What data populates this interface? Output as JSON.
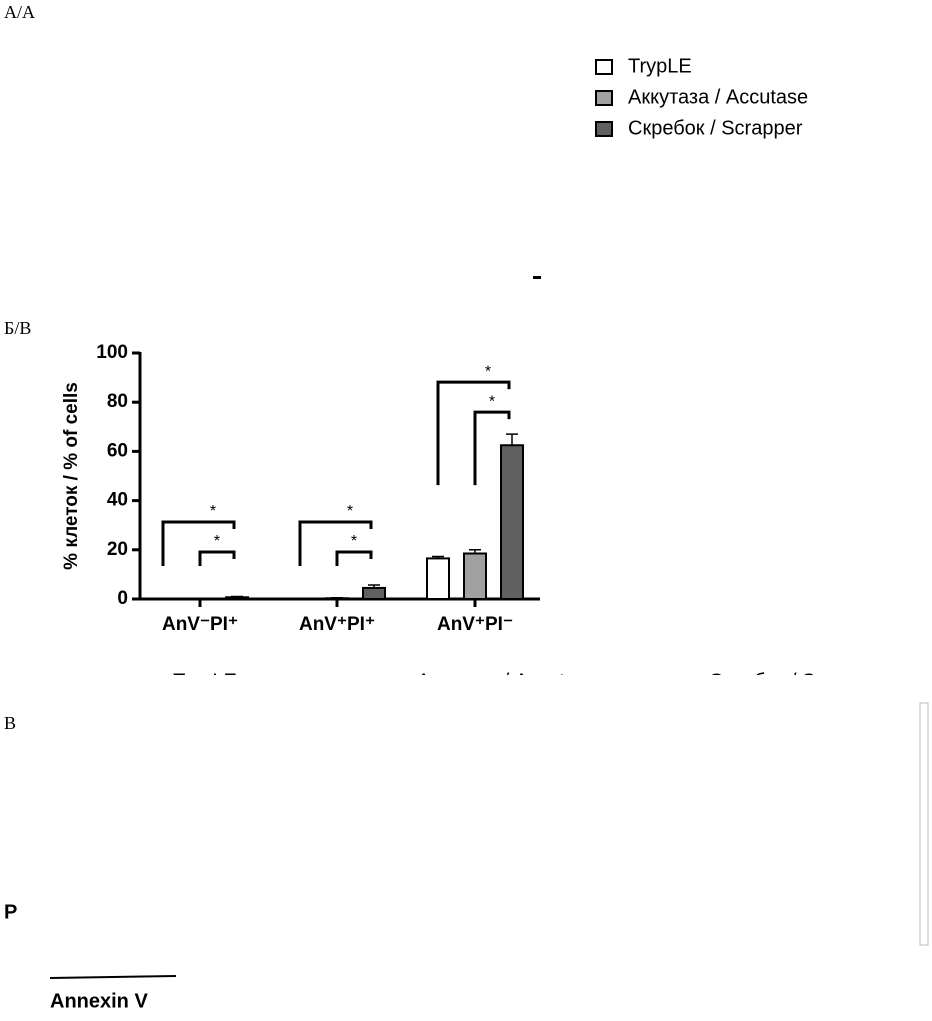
{
  "panels": {
    "a": "А/A",
    "b": "Б/B",
    "c": "В",
    "d": "Р",
    "axis_note": "Annexin V"
  },
  "chart_data": {
    "type": "bar",
    "y_label": "% клеток / % of cells",
    "categories": [
      "AnV⁻PI⁺",
      "AnV⁺PI⁺",
      "AnV⁺PI⁻"
    ],
    "series": [
      {
        "name": "TrypLE",
        "color": "#ffffff",
        "values": [
          0,
          0,
          16.5
        ],
        "errors": [
          0,
          0,
          0.8
        ]
      },
      {
        "name": "Аккутаза / Accutase",
        "color": "#a0a0a0",
        "values": [
          0,
          0.3,
          18.5
        ],
        "errors": [
          0,
          0.2,
          1.5
        ]
      },
      {
        "name": "Скребок / Scrapper",
        "color": "#606060",
        "values": [
          0.7,
          4.5,
          62.5
        ],
        "errors": [
          0.3,
          1.2,
          4.5
        ]
      }
    ],
    "annotations": [
      "*",
      "*",
      "*",
      "*",
      "*",
      "*"
    ],
    "ylim": [
      0,
      100
    ],
    "yticks": [
      0,
      20,
      40,
      60,
      80,
      100
    ]
  }
}
